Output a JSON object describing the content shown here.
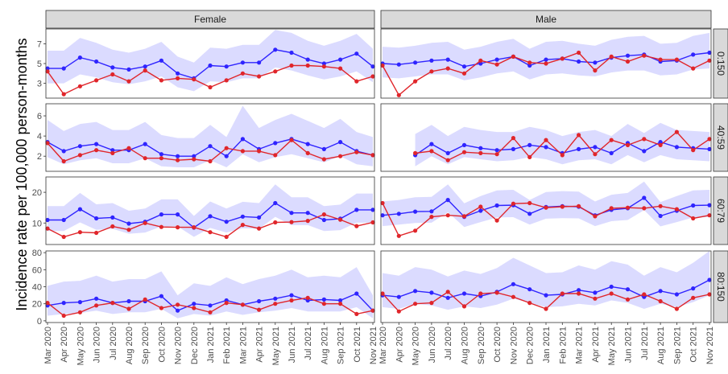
{
  "colors": {
    "blue": "#2f24ff",
    "red": "#e0262b",
    "band": "#ccccff",
    "strip_bg": "#d9d9d9",
    "strip_border": "#333333",
    "panel_border": "#333333"
  },
  "chart_data": {
    "type": "line",
    "ylabel": "Incidence rate per 100,000 person-months",
    "columns": [
      "Female",
      "Male"
    ],
    "rows": [
      "0:150",
      "40:59",
      "60:79",
      "80:150"
    ],
    "x": [
      "Mar 2020",
      "Apr 2020",
      "May 2020",
      "Jun 2020",
      "Jul 2020",
      "Aug 2020",
      "Sep 2020",
      "Oct 2020",
      "Nov 2020",
      "Dec 2020",
      "Jan 2021",
      "Feb 2021",
      "Mar 2021",
      "Apr 2021",
      "May 2021",
      "Jun 2021",
      "Jul 2021",
      "Aug 2021",
      "Sep 2021",
      "Oct 2021",
      "Nov 2021"
    ],
    "x_ticks_female": [
      "Mar 2020",
      "Apr 2020",
      "May 2020",
      "Jun 2020",
      "Jul 2020",
      "Aug 2020",
      "Sep 2020",
      "Oct 2020",
      "Nov 2020",
      "Dec 2020",
      "Jan 2021",
      "Feb 2021",
      "Mar 2021",
      "Apr 2021",
      "May 2021",
      "Jun 2021",
      "Jul 2021",
      "Aug 2021",
      "Sep 2021",
      "Oct 2021",
      "Nov 2021"
    ],
    "x_ticks_male": [
      "Mar 2020",
      "Apr 2020",
      "May 2020",
      "Jun 2020",
      "Jul 2020",
      "Aug 2020",
      "Sep 2020",
      "Oct 2020",
      "Nov 2020",
      "Dec 2020",
      "Jan 2021",
      "Feb 2021",
      "Mar 2021",
      "Apr 2021",
      "May 2021",
      "Jun 2021",
      "Jul 2021",
      "Aug 2021",
      "Sep 2021",
      "Oct 2021",
      "Nov 2021"
    ],
    "panels": [
      {
        "row": "0:150",
        "ylim": [
          1.5,
          8.5
        ],
        "yticks": [
          3,
          5,
          7
        ],
        "female": {
          "blue": [
            4.5,
            4.5,
            5.6,
            5.2,
            4.6,
            4.4,
            4.7,
            5.3,
            4.0,
            3.5,
            4.8,
            4.7,
            5.1,
            5.1,
            6.4,
            6.1,
            5.4,
            5.0,
            5.4,
            6.0,
            4.7
          ],
          "red": [
            4.2,
            1.9,
            2.7,
            3.3,
            3.9,
            3.2,
            4.3,
            3.3,
            3.5,
            3.4,
            2.6,
            3.3,
            4.0,
            3.7,
            4.2,
            4.8,
            4.8,
            4.7,
            4.5,
            3.2,
            3.7
          ],
          "lower": [
            3.0,
            3.0,
            3.9,
            3.6,
            3.1,
            2.9,
            3.2,
            3.7,
            2.6,
            2.2,
            3.2,
            3.1,
            3.5,
            3.5,
            4.6,
            4.3,
            3.8,
            3.4,
            3.7,
            4.2,
            3.1
          ],
          "upper": [
            6.3,
            6.3,
            7.6,
            7.1,
            6.4,
            6.1,
            6.5,
            7.2,
            5.7,
            5.1,
            6.6,
            6.5,
            6.9,
            6.9,
            8.4,
            8.1,
            7.3,
            6.8,
            7.3,
            8.0,
            6.5
          ]
        },
        "male": {
          "blue": [
            5.0,
            4.9,
            5.1,
            5.3,
            5.4,
            4.7,
            5.0,
            5.4,
            5.7,
            4.8,
            5.4,
            5.5,
            5.2,
            5.1,
            5.6,
            5.8,
            5.9,
            5.2,
            5.3,
            5.9,
            6.1
          ],
          "red": [
            4.8,
            1.8,
            3.2,
            4.2,
            4.5,
            4.0,
            5.3,
            4.9,
            5.7,
            5.1,
            5.0,
            5.5,
            6.1,
            4.3,
            5.7,
            5.2,
            5.8,
            5.4,
            5.4,
            4.5,
            5.3
          ],
          "lower": [
            3.6,
            3.5,
            3.7,
            3.9,
            3.9,
            3.3,
            3.6,
            4.0,
            4.2,
            3.4,
            3.9,
            4.0,
            3.8,
            3.7,
            4.1,
            4.3,
            4.3,
            3.8,
            3.9,
            4.4,
            4.5
          ],
          "upper": [
            6.7,
            6.6,
            6.8,
            7.1,
            7.2,
            6.4,
            6.7,
            7.2,
            7.5,
            6.5,
            7.2,
            7.3,
            7.0,
            6.8,
            7.4,
            7.7,
            7.8,
            7.0,
            7.1,
            7.8,
            8.1
          ]
        }
      },
      {
        "row": "40:59",
        "ylim": [
          0.5,
          7.2
        ],
        "yticks": [
          2,
          4,
          6
        ],
        "female": {
          "blue": [
            3.4,
            2.5,
            3.0,
            3.2,
            2.6,
            2.6,
            3.2,
            2.2,
            2.0,
            2.0,
            3.0,
            2.0,
            3.7,
            2.7,
            3.3,
            3.7,
            3.2,
            2.7,
            3.4,
            2.5,
            2.1
          ],
          "red": [
            3.3,
            1.5,
            2.1,
            2.6,
            2.3,
            2.8,
            1.8,
            1.8,
            1.6,
            1.7,
            1.5,
            2.8,
            2.5,
            2.5,
            2.1,
            3.6,
            2.3,
            1.7,
            2.0,
            2.4,
            2.1
          ],
          "lower": [
            1.9,
            1.2,
            1.6,
            1.8,
            1.3,
            1.3,
            1.8,
            1.0,
            0.9,
            0.9,
            1.6,
            0.9,
            2.2,
            1.4,
            1.9,
            2.2,
            1.8,
            1.4,
            2.0,
            1.2,
            1.0
          ],
          "upper": [
            5.6,
            4.5,
            5.2,
            5.4,
            4.6,
            4.6,
            5.4,
            4.1,
            3.8,
            3.8,
            5.1,
            3.9,
            7.0,
            4.8,
            5.6,
            6.2,
            5.5,
            4.8,
            5.7,
            4.4,
            3.9
          ]
        },
        "male": {
          "blue": [
            null,
            null,
            2.1,
            3.2,
            2.3,
            3.1,
            2.8,
            2.6,
            2.7,
            3.1,
            2.9,
            2.3,
            2.7,
            2.9,
            2.3,
            3.3,
            2.5,
            3.4,
            2.9,
            2.8,
            2.7
          ],
          "red": [
            null,
            null,
            2.3,
            2.5,
            1.6,
            2.4,
            2.3,
            2.2,
            3.8,
            1.9,
            3.6,
            2.1,
            4.1,
            2.2,
            3.6,
            3.1,
            3.7,
            3.1,
            4.4,
            2.6,
            3.7
          ],
          "lower": [
            null,
            null,
            1.0,
            2.0,
            1.2,
            1.9,
            1.7,
            1.5,
            1.6,
            1.9,
            1.7,
            1.2,
            1.6,
            1.7,
            1.2,
            2.1,
            1.4,
            2.1,
            1.7,
            1.6,
            1.5
          ],
          "upper": [
            null,
            null,
            4.2,
            5.1,
            4.0,
            4.9,
            4.6,
            4.4,
            4.4,
            4.9,
            4.6,
            4.0,
            4.4,
            4.6,
            4.0,
            5.2,
            4.3,
            5.3,
            4.6,
            4.5,
            4.4
          ]
        }
      },
      {
        "row": "60:79",
        "ylim": [
          3,
          25
        ],
        "yticks": [
          10,
          20
        ],
        "female": {
          "blue": [
            11.0,
            11.0,
            14.5,
            11.5,
            11.8,
            9.8,
            10.4,
            12.8,
            12.8,
            8.5,
            12.2,
            10.4,
            12.1,
            11.8,
            16.5,
            13.3,
            13.3,
            11.0,
            11.4,
            14.3,
            14.3
          ],
          "red": [
            8.2,
            5.5,
            7.0,
            6.8,
            8.9,
            7.8,
            10.0,
            8.7,
            8.6,
            8.6,
            7.0,
            5.5,
            9.4,
            8.2,
            10.2,
            10.3,
            10.7,
            12.8,
            11.1,
            9.0,
            10.2
          ],
          "lower": [
            7.4,
            7.4,
            10.2,
            7.8,
            8.1,
            6.5,
            6.9,
            8.9,
            8.9,
            5.5,
            8.4,
            6.9,
            8.3,
            8.1,
            12.0,
            9.3,
            9.3,
            7.4,
            7.7,
            10.1,
            10.1
          ],
          "upper": [
            15.5,
            15.5,
            19.8,
            16.1,
            16.5,
            14.0,
            14.7,
            17.7,
            17.7,
            12.3,
            17.0,
            14.7,
            16.9,
            16.5,
            22.6,
            18.4,
            18.4,
            15.5,
            16.0,
            19.6,
            19.6
          ]
        },
        "male": {
          "blue": [
            12.5,
            13.0,
            13.7,
            13.8,
            17.5,
            12.0,
            14.0,
            15.7,
            15.8,
            13.0,
            15.2,
            15.5,
            15.3,
            12.5,
            14.3,
            14.8,
            18.2,
            12.3,
            14.0,
            15.7,
            15.8
          ],
          "red": [
            16.5,
            5.8,
            7.5,
            12.0,
            12.5,
            12.2,
            15.3,
            10.8,
            16.3,
            16.5,
            15.0,
            15.3,
            15.5,
            12.2,
            14.8,
            15.0,
            14.8,
            15.5,
            14.5,
            11.5,
            12.5
          ],
          "lower": [
            9.0,
            9.5,
            10.0,
            10.1,
            13.5,
            8.7,
            10.3,
            11.8,
            11.9,
            9.5,
            11.4,
            11.6,
            11.5,
            9.0,
            10.6,
            11.0,
            14.2,
            8.9,
            10.3,
            11.8,
            11.9
          ],
          "upper": [
            17.0,
            17.5,
            18.4,
            18.5,
            22.6,
            16.4,
            18.8,
            20.6,
            20.8,
            17.5,
            20.1,
            20.4,
            20.2,
            17.0,
            19.2,
            19.8,
            23.5,
            16.8,
            18.8,
            20.6,
            20.8
          ]
        }
      },
      {
        "row": "80:150",
        "ylim": [
          -2,
          82
        ],
        "yticks": [
          0,
          20,
          40,
          60,
          80
        ],
        "female": {
          "blue": [
            18,
            21,
            22,
            26,
            21,
            23,
            23,
            29,
            12,
            20,
            18,
            24,
            19,
            23,
            26,
            30,
            24,
            25,
            24,
            32,
            12
          ],
          "red": [
            21,
            6,
            10,
            18,
            21,
            14,
            25,
            15,
            19,
            15,
            10,
            21,
            19,
            13,
            20,
            24,
            27,
            20,
            20,
            8,
            12
          ],
          "lower": [
            6,
            8,
            9,
            12,
            8,
            10,
            10,
            14,
            3,
            8,
            6,
            11,
            7,
            10,
            12,
            15,
            11,
            11,
            11,
            16,
            3
          ],
          "upper": [
            41,
            46,
            47,
            53,
            46,
            49,
            49,
            58,
            30,
            44,
            41,
            51,
            43,
            49,
            53,
            60,
            51,
            53,
            51,
            63,
            30
          ]
        },
        "male": {
          "blue": [
            30,
            28,
            35,
            33,
            27,
            32,
            29,
            34,
            43,
            37,
            30,
            31,
            36,
            33,
            40,
            37,
            28,
            35,
            31,
            38,
            48
          ],
          "red": [
            32,
            11,
            20,
            21,
            34,
            17,
            32,
            33,
            28,
            21,
            14,
            32,
            32,
            26,
            32,
            25,
            31,
            23,
            14,
            27,
            31
          ],
          "lower": [
            16,
            14,
            20,
            18,
            13,
            17,
            15,
            19,
            26,
            21,
            16,
            17,
            20,
            18,
            24,
            21,
            14,
            20,
            16,
            22,
            30
          ],
          "upper": [
            56,
            53,
            63,
            60,
            52,
            59,
            55,
            62,
            74,
            65,
            56,
            57,
            65,
            60,
            70,
            66,
            53,
            63,
            57,
            68,
            82
          ]
        }
      }
    ]
  }
}
